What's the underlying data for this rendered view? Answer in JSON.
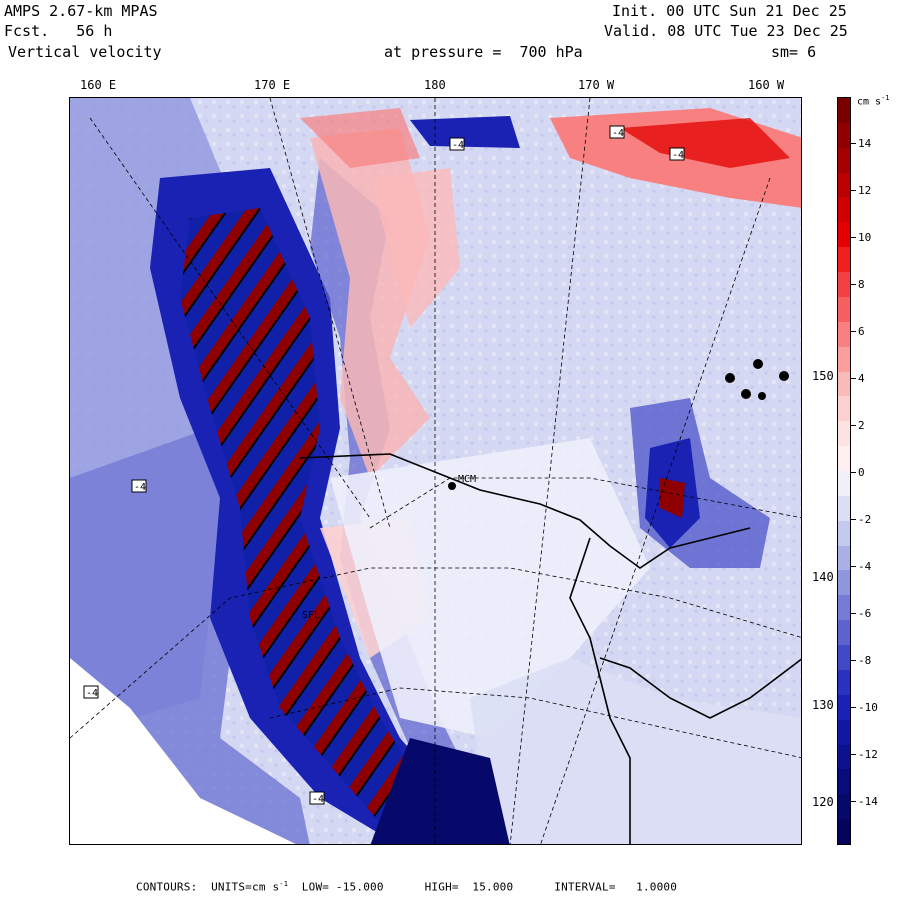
{
  "header": {
    "model": "AMPS 2.67-km MPAS",
    "init": "Init. 00 UTC Sun 21 Dec 25",
    "fcst": "Fcst.   56 h",
    "valid": "Valid. 08 UTC Tue 23 Dec 25",
    "field": "Vertical velocity",
    "level": "at pressure =  700 hPa",
    "smooth": "sm= 6"
  },
  "longitude_labels": [
    "160 E",
    "170 E",
    "180",
    "170 W",
    "160 W"
  ],
  "latitude_labels": [
    "150 W",
    "140 W",
    "130 W",
    "120 W"
  ],
  "colorbar": {
    "units": "cm s",
    "units_exp": "-1",
    "tick_labels": [
      "14",
      "12",
      "10",
      "8",
      "6",
      "4",
      "2",
      "0",
      "-2",
      "-4",
      "-6",
      "-8",
      "-10",
      "-12",
      "-14"
    ],
    "colors": [
      "#7a0000",
      "#8f0000",
      "#a50000",
      "#bb0000",
      "#d10000",
      "#e40000",
      "#f02020",
      "#f44040",
      "#f66060",
      "#f88080",
      "#fa9e9e",
      "#fbbaba",
      "#fcd0d0",
      "#fde2e2",
      "#fef0f0",
      "#f0f0fa",
      "#dcdff4",
      "#c4c9ee",
      "#aab0e6",
      "#8f96de",
      "#767cd6",
      "#5c63ce",
      "#4049c6",
      "#2a32c0",
      "#1a22b4",
      "#1018a2",
      "#0c128e",
      "#080c7a",
      "#06086a",
      "#04045a"
    ]
  },
  "map_labels": {
    "station_mcm": "MCM",
    "station_sfl": "SFL",
    "contour_tag": "-4"
  },
  "footer": {
    "contours": "CONTOURS:",
    "units": "UNITS=cm s",
    "units_exp": "-1",
    "low": "LOW= -15.000",
    "high": "HIGH=  15.000",
    "interval": "INTERVAL=   1.0000"
  },
  "palette": {
    "ice": "#e4e6f6",
    "light_blue": "#b6bdea",
    "mid_blue": "#6a74d8",
    "deep_blue": "#1a22b4",
    "navy": "#07076a",
    "light_red": "#f8b6b6",
    "mid_red": "#ee5a5a",
    "dark_red": "#8e0000",
    "white": "#ffffff"
  }
}
